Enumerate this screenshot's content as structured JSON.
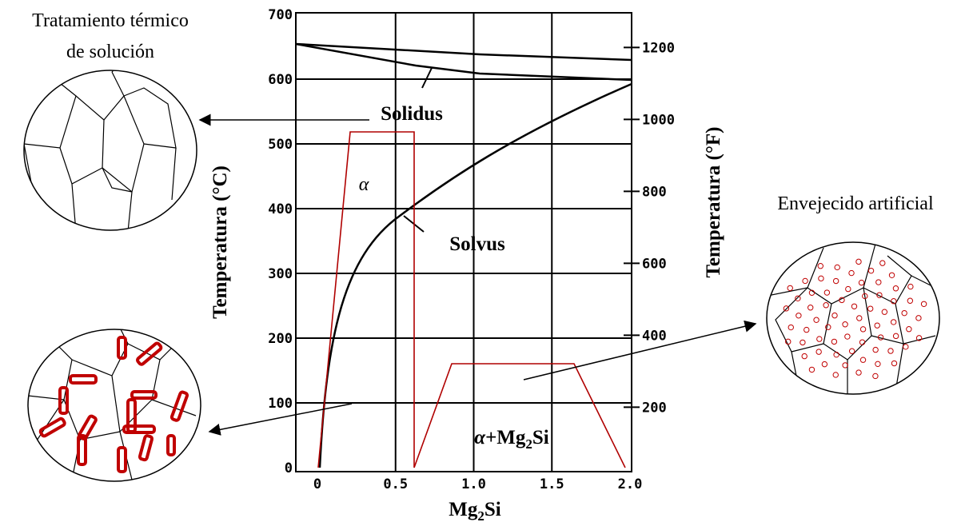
{
  "header": {
    "left_title_line1": "Tratamiento térmico",
    "left_title_line2": "de solución",
    "right_title": "Envejecido artificial"
  },
  "diagram": {
    "y_label": "Temperatura (°C)",
    "y2_label": "Temperatura (°F)",
    "x_label": {
      "base": "Mg",
      "sub": "2",
      "tail": "Si"
    },
    "xlim": [
      0,
      2
    ],
    "ylim": [
      0,
      700
    ],
    "xticks": [
      0,
      0.5,
      {
        "value": 1,
        "label": "1.0"
      },
      1.5,
      {
        "value": 2,
        "label": "2.0"
      }
    ],
    "yticks": [
      0,
      100,
      200,
      300,
      400,
      500,
      600,
      700
    ],
    "y2ticks": [
      200,
      400,
      600,
      800,
      1000,
      1200
    ],
    "annotations": {
      "solidus": "Solidus",
      "solvus": "Solvus",
      "alpha": "α",
      "two_phase": {
        "alpha": "α",
        "plus": "+Mg",
        "sub": "2",
        "tail": "Si"
      }
    }
  }
}
